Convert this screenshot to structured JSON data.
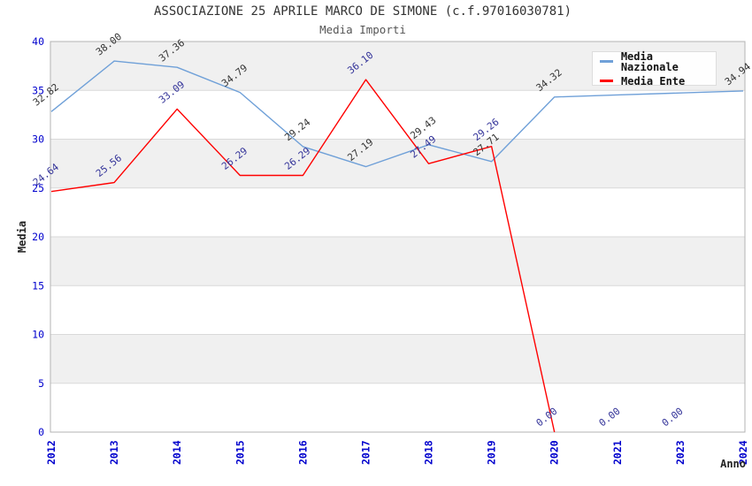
{
  "title": "ASSOCIAZIONE 25 APRILE MARCO DE SIMONE (c.f.97016030781)",
  "subtitle": "Media Importi",
  "legend": {
    "items": [
      {
        "label": "Media Nazionale",
        "color": "#6FA0D8"
      },
      {
        "label": "Media Ente",
        "color": "#FF0000"
      }
    ]
  },
  "axes": {
    "x_label": "Anno",
    "y_label": "Media",
    "x_ticks": [
      "2012",
      "2013",
      "2014",
      "2015",
      "2016",
      "2017",
      "2018",
      "2019",
      "2020",
      "2021",
      "2023",
      "2024"
    ],
    "y_ticks": [
      "0",
      "5",
      "10",
      "15",
      "20",
      "25",
      "30",
      "35",
      "40"
    ]
  },
  "colors": {
    "band_gray": "#F0F0F0",
    "band_white": "#FFFFFF",
    "grid": "#D9D9D9",
    "plot_border": "#B3B3B3",
    "tick_label": "#0000CD",
    "axis_title": "#222222",
    "nazionale_line": "#6FA0D8",
    "ente_line": "#FF0000",
    "nazionale_value_label": "#333333",
    "ente_value_label": "#333399"
  },
  "chart_data": {
    "type": "line",
    "title": "ASSOCIAZIONE 25 APRILE MARCO DE SIMONE (c.f.97016030781)",
    "subtitle": "Media Importi",
    "xlabel": "Anno",
    "ylabel": "Media",
    "ylim": [
      0,
      40
    ],
    "grid": "horizontal-bands-every-5",
    "legend_position": "top-right-inside",
    "categories": [
      "2012",
      "2013",
      "2014",
      "2015",
      "2016",
      "2017",
      "2018",
      "2019",
      "2020",
      "2021",
      "2023",
      "2024"
    ],
    "series": [
      {
        "name": "Media Nazionale",
        "color": "#6FA0D8",
        "label_color": "#333333",
        "values": [
          32.82,
          38.0,
          37.36,
          34.79,
          29.24,
          27.19,
          29.43,
          27.71,
          34.32,
          34.53,
          34.73,
          34.94
        ],
        "point_labels": [
          "32.82",
          "38.00",
          "37.36",
          "34.79",
          "29.24",
          "27.19",
          "29.43",
          "27.71",
          "34.32",
          null,
          null,
          "34.94"
        ]
      },
      {
        "name": "Media Ente",
        "color": "#FF0000",
        "label_color": "#333399",
        "values": [
          24.64,
          25.56,
          33.09,
          26.29,
          26.29,
          36.1,
          27.49,
          29.26,
          0.0,
          0.0,
          0.0,
          null
        ],
        "point_labels": [
          "24.64",
          "25.56",
          "33.09",
          "26.29",
          "26.29",
          "36.10",
          "27.49",
          "29.26",
          "0.00",
          "0.00",
          "0.00",
          null
        ],
        "line_end_index": 8
      }
    ]
  }
}
